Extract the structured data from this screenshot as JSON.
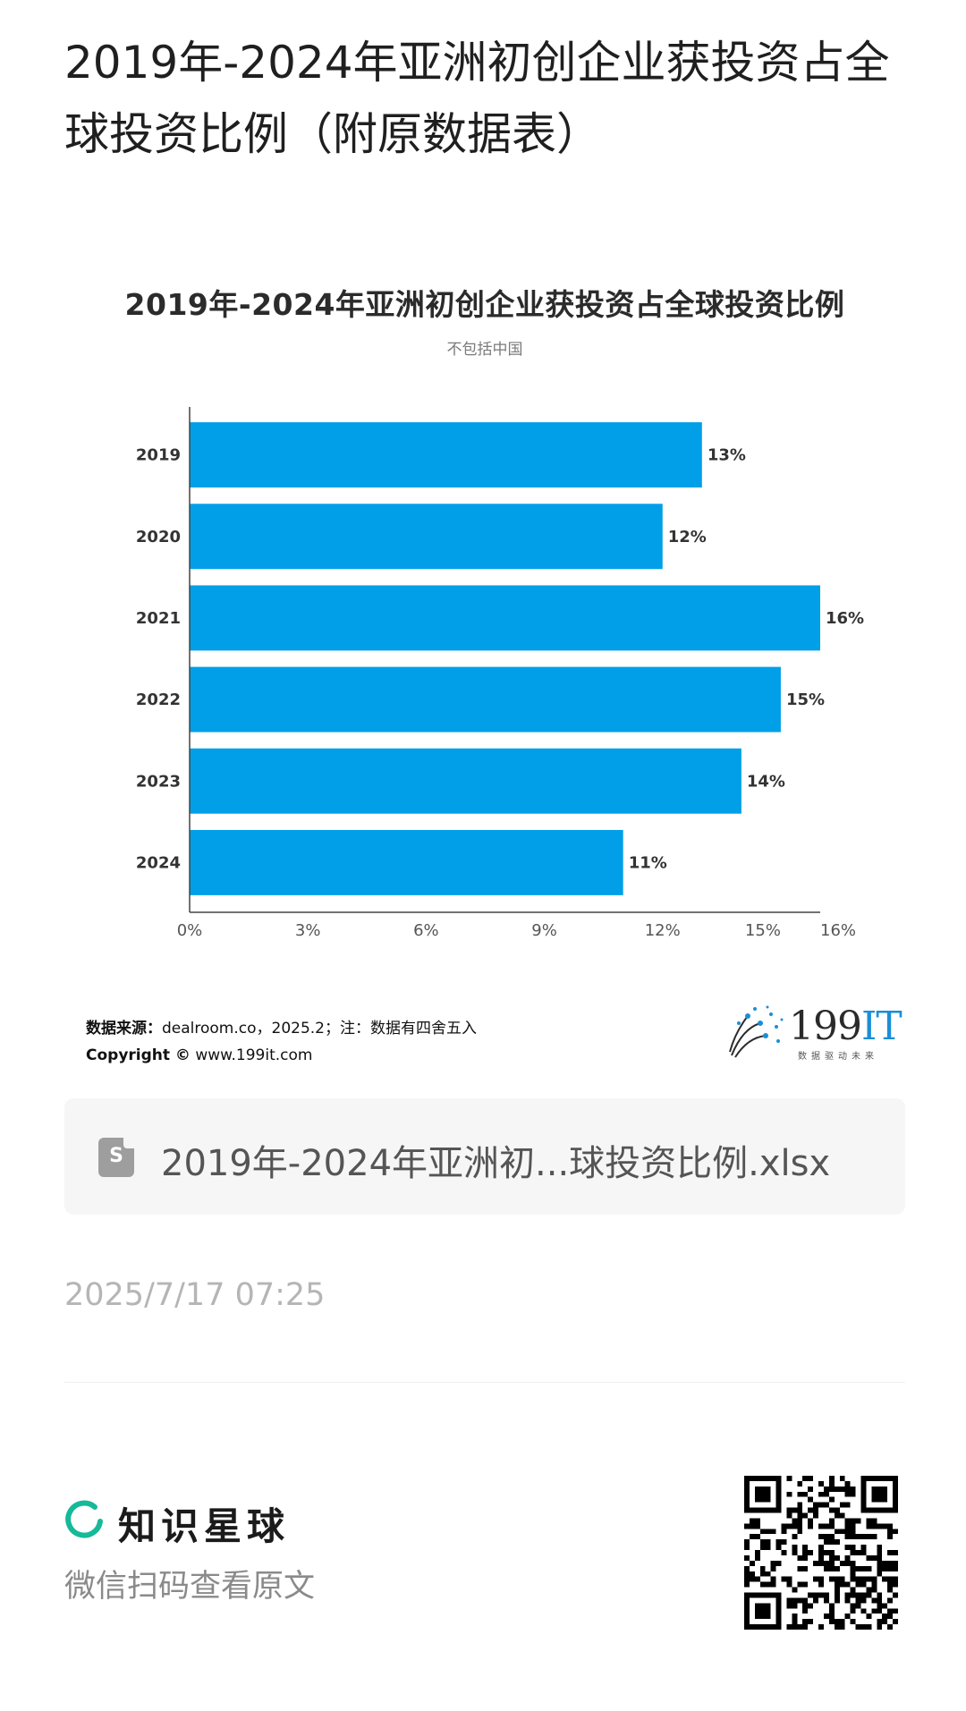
{
  "page": {
    "title": "2019年-2024年亚洲初创企业获投资占全球投资比例（附原数据表）"
  },
  "chart_data": {
    "type": "bar",
    "orientation": "horizontal",
    "title": "2019年-2024年亚洲初创企业获投资占全球投资比例",
    "subtitle": "不包括中国",
    "categories": [
      "2019",
      "2020",
      "2021",
      "2022",
      "2023",
      "2024"
    ],
    "values": [
      13,
      12,
      16,
      15,
      14,
      11
    ],
    "value_labels": [
      "13%",
      "12%",
      "16%",
      "15%",
      "14%",
      "11%"
    ],
    "x_ticks": [
      "0%",
      "3%",
      "6%",
      "9%",
      "12%",
      "15%",
      "16%"
    ],
    "x_tick_values": [
      0,
      3,
      6,
      9,
      12,
      15,
      16
    ],
    "xlim": [
      0,
      16
    ],
    "bar_color": "#009fe8",
    "grid": false,
    "legend": "none"
  },
  "source": {
    "label": "数据来源：",
    "text": "dealroom.co，2025.2；注：数据有四舍五入",
    "copyright_label": "Copyright ©",
    "copyright_text": " www.199it.com"
  },
  "logo": {
    "number": "199",
    "suffix": "IT",
    "tagline": "数据驱动未来"
  },
  "file": {
    "name": "2019年-2024年亚洲初...球投资比例.xlsx",
    "icon": "spreadsheet-file-icon",
    "icon_letter": "S"
  },
  "timestamp": "2025/7/17 07:25",
  "footer": {
    "brand": "知识星球",
    "scan_hint": "微信扫码查看原文",
    "brand_color": "#16b998"
  }
}
